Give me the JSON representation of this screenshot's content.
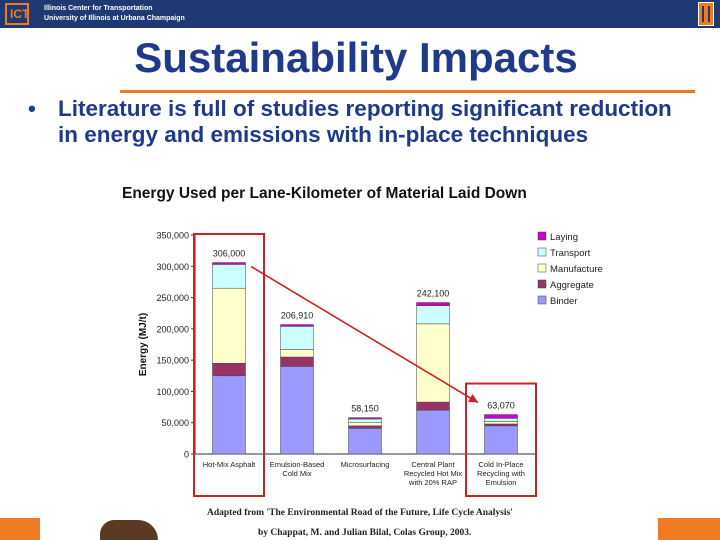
{
  "header": {
    "org_line1": "Illinois Center for Transportation",
    "org_line2": "University of Illinois at Urbana Champaign",
    "logo_text": "ICT"
  },
  "title": "Sustainability Impacts",
  "bullet": {
    "marker": "•",
    "text": "Literature is full of studies reporting significant reduction in energy and emissions with in-place techniques"
  },
  "colors": {
    "brand_blue": "#1f3a72",
    "accent_orange": "#f07a24",
    "highlight_red": "#cc2222"
  },
  "chart_data": {
    "type": "bar",
    "stacked": true,
    "title": "Energy Used per Lane-Kilometer of Material Laid Down",
    "ylabel": "Energy (MJ/t)",
    "xlabel": "",
    "ylim": [
      0,
      350000
    ],
    "yticks": [
      0,
      50000,
      100000,
      150000,
      200000,
      250000,
      300000,
      350000
    ],
    "ytick_labels": [
      "0",
      "50,000",
      "100,000",
      "150,000",
      "200,000",
      "250,000",
      "300,000",
      "350,000"
    ],
    "categories": [
      [
        "Hot-Mix Asphalt"
      ],
      [
        "Emulsion-Based",
        "Cold Mix"
      ],
      [
        "Microsurfacing"
      ],
      [
        "Central Plant",
        "Recycled Hot Mix",
        "with 20% RAP"
      ],
      [
        "Cold In-Place",
        "Recycling with",
        "Emulsion"
      ]
    ],
    "totals": [
      306000,
      206910,
      58150,
      242100,
      63070
    ],
    "total_labels": [
      "306,000",
      "206,910",
      "58,150",
      "242,100",
      "63,070"
    ],
    "series": [
      {
        "name": "Binder",
        "color": "#9999ff",
        "values": [
          125000,
          140000,
          41000,
          70000,
          45000
        ]
      },
      {
        "name": "Aggregate",
        "color": "#993366",
        "values": [
          20000,
          15000,
          4000,
          13000,
          3000
        ]
      },
      {
        "name": "Manufacture",
        "color": "#ffffcc",
        "values": [
          120000,
          12000,
          5000,
          125000,
          4000
        ]
      },
      {
        "name": "Transport",
        "color": "#ccffff",
        "values": [
          38000,
          37000,
          6000,
          29000,
          5000
        ]
      },
      {
        "name": "Laying",
        "color": "#cc00cc",
        "values": [
          3000,
          2910,
          2150,
          5100,
          6070
        ]
      }
    ],
    "legend_order": [
      "Laying",
      "Transport",
      "Manufacture",
      "Aggregate",
      "Binder"
    ],
    "legend_position": "top-right",
    "highlighted_categories": [
      0,
      4
    ],
    "annotation": "arrow from Hot-Mix Asphalt to Cold In-Place Recycling with Emulsion",
    "grid": false
  },
  "source": {
    "line1": "Adapted from 'The Environmental Road of the Future, Life Cycle Analysis'",
    "line2": "by Chappat, M. and Julian Bilal, Colas Group, 2003."
  }
}
